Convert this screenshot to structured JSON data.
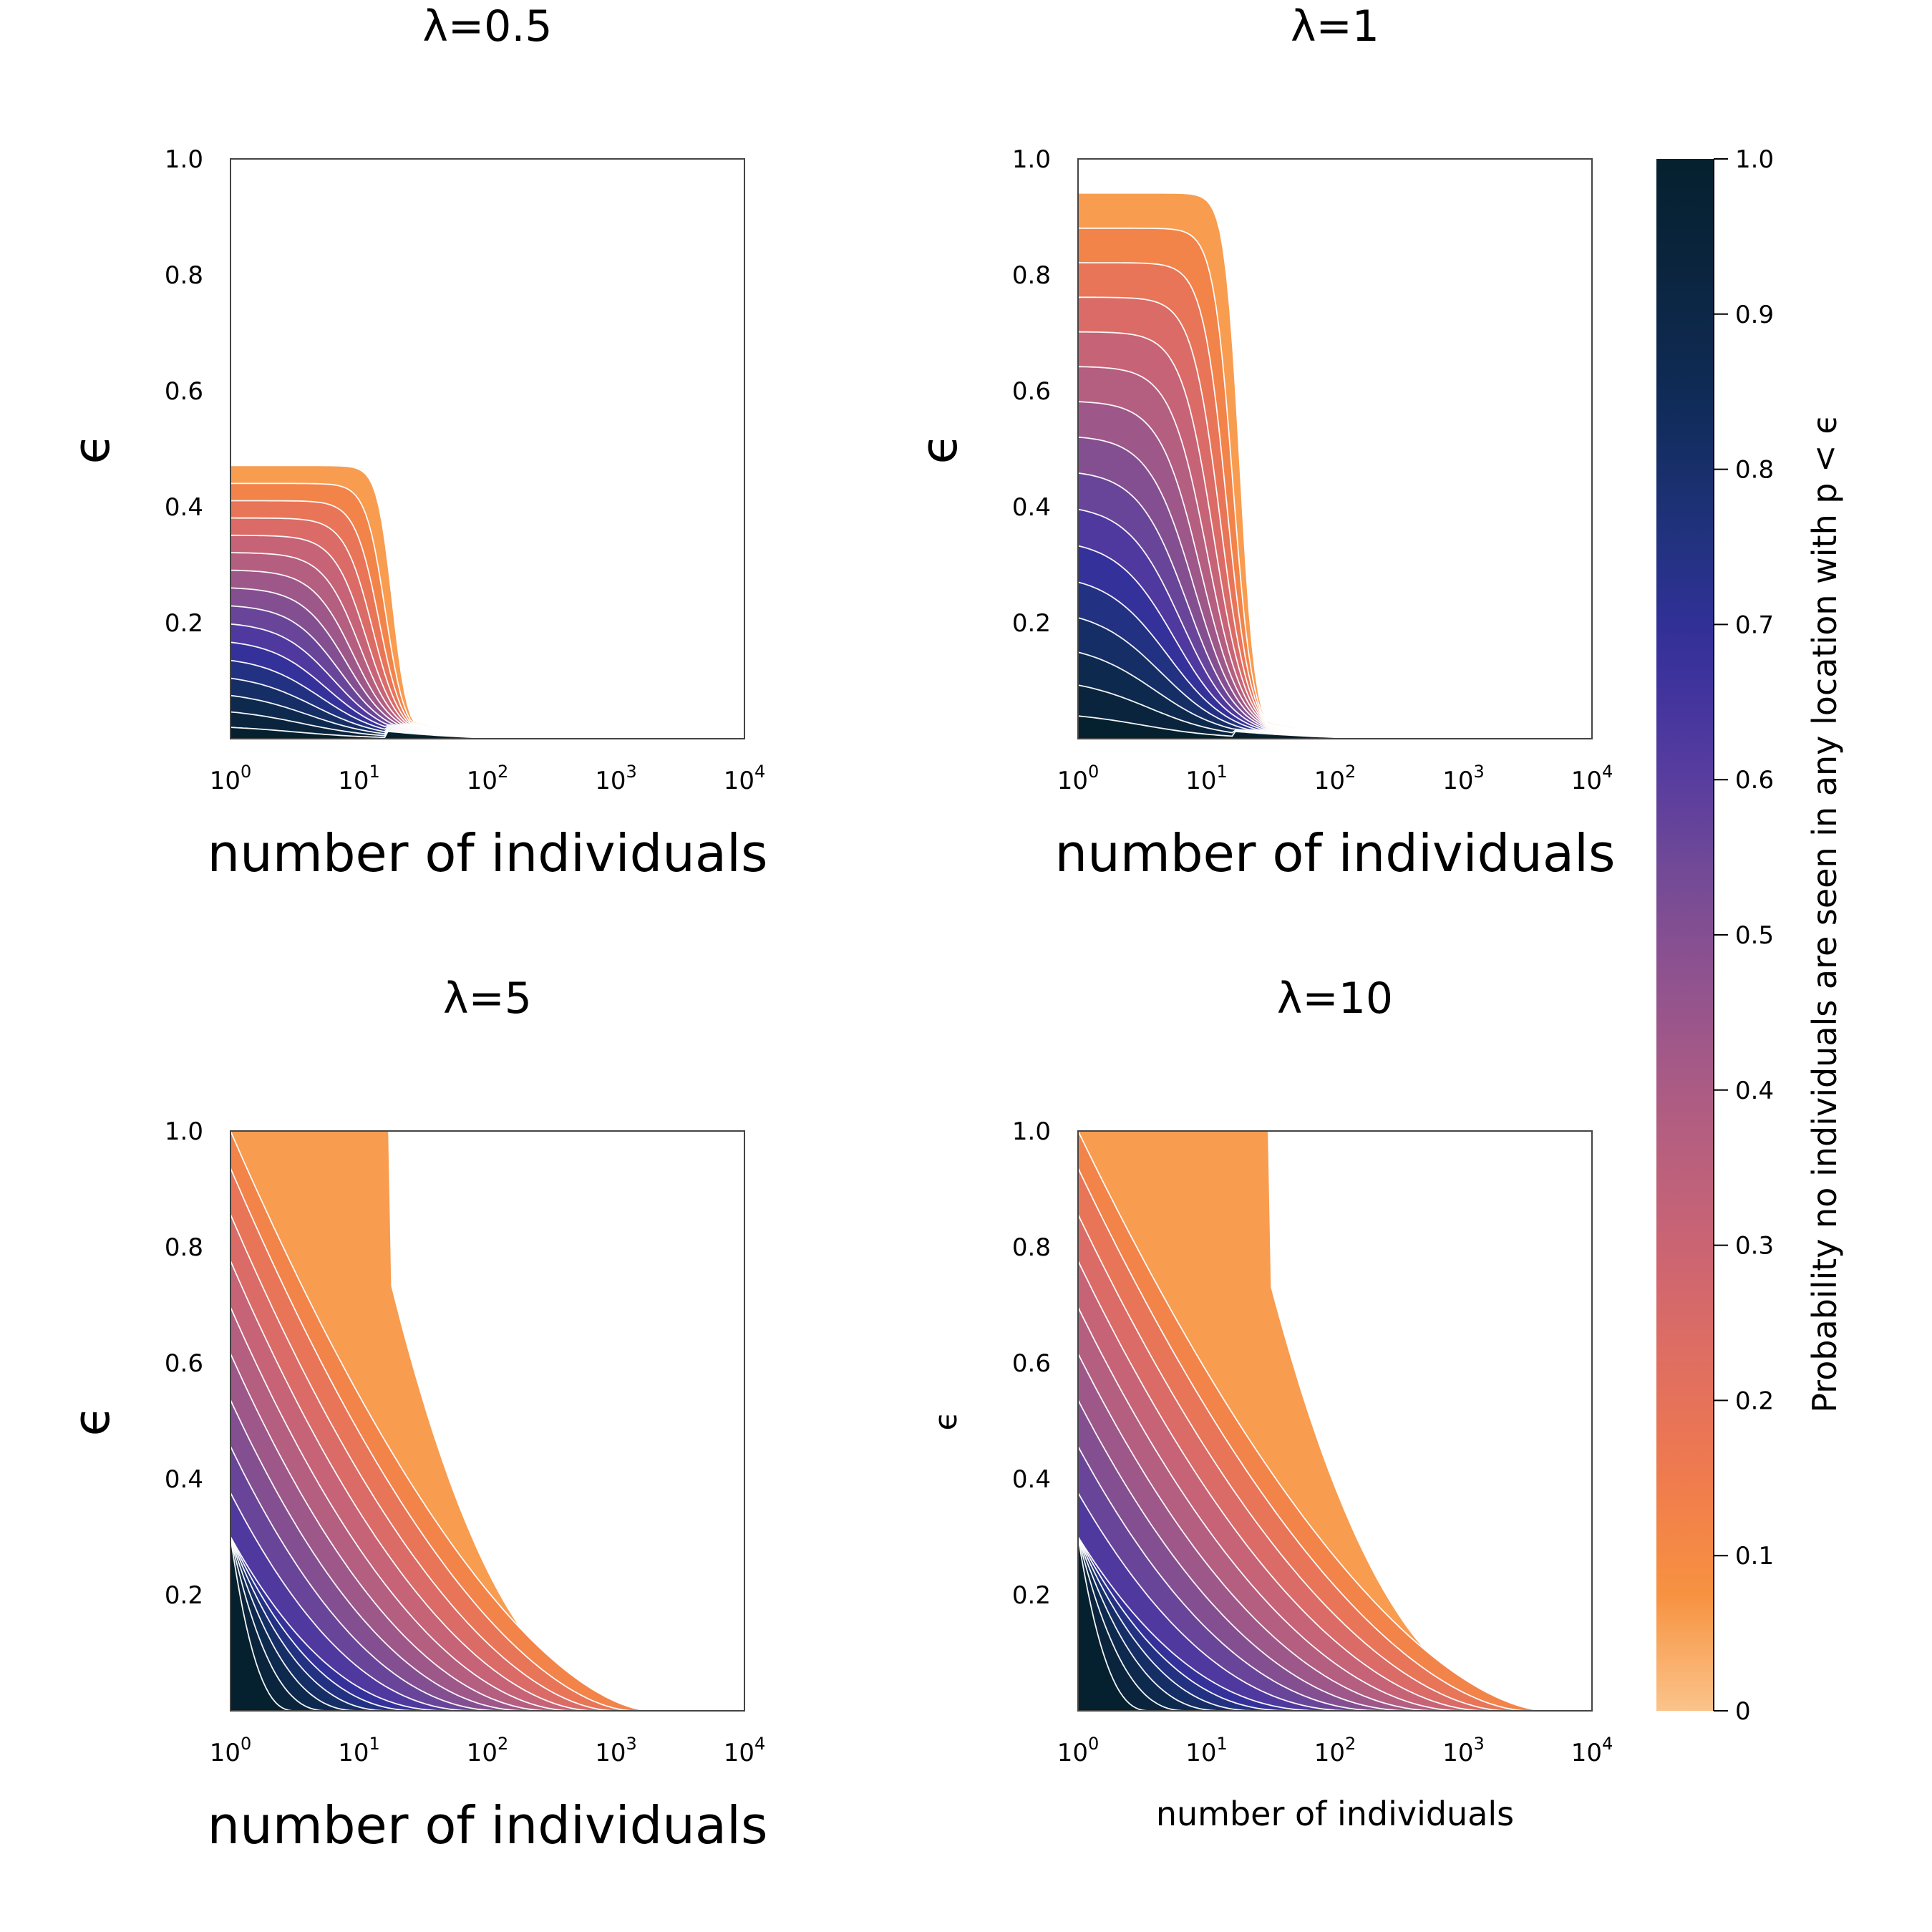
{
  "chart_data": [
    {
      "type": "contour",
      "title": "λ=0.5",
      "lambda": 0.5,
      "xlabel": "number of individuals",
      "ylabel": "ϵ",
      "x_scale": "log",
      "xlim": [
        1,
        10000
      ],
      "ylim": [
        0,
        1
      ],
      "x_ticks": [
        "0",
        "1",
        "2",
        "3",
        "4"
      ],
      "y_ticks": [
        "0.2",
        "0.4",
        "0.6",
        "0.8",
        "1.0"
      ],
      "n_levels": 16,
      "max_epsilon_at_one_individual": 0.47,
      "cliff_individuals": 18,
      "tail_end_individuals": 250
    },
    {
      "type": "contour",
      "title": "λ=1",
      "lambda": 1,
      "xlabel": "number of individuals",
      "ylabel": "ϵ",
      "x_scale": "log",
      "xlim": [
        1,
        10000
      ],
      "ylim": [
        0,
        1
      ],
      "x_ticks": [
        "0",
        "1",
        "2",
        "3",
        "4"
      ],
      "y_ticks": [
        "0.2",
        "0.4",
        "0.6",
        "0.8",
        "1.0"
      ],
      "n_levels": 16,
      "max_epsilon_at_one_individual": 0.94,
      "cliff_individuals": 18,
      "tail_end_individuals": 400
    },
    {
      "type": "contour",
      "title": "λ=5",
      "lambda": 5,
      "xlabel": "number of individuals",
      "ylabel": "ϵ",
      "x_scale": "log",
      "xlim": [
        1,
        10000
      ],
      "ylim": [
        0,
        1
      ],
      "x_ticks": [
        "0",
        "1",
        "2",
        "3",
        "4"
      ],
      "y_ticks": [
        "0.2",
        "0.4",
        "0.6",
        "0.8",
        "1.0"
      ],
      "n_levels": 16,
      "max_epsilon_at_one_individual": 1.0,
      "outer_boundary_individuals_at_top": 17,
      "tail_end_individuals": 2500
    },
    {
      "type": "contour",
      "title": "λ=10",
      "lambda": 10,
      "xlabel": "number of individuals",
      "ylabel": "ϵ",
      "x_scale": "log",
      "xlim": [
        1,
        10000
      ],
      "ylim": [
        0,
        1
      ],
      "x_ticks": [
        "0",
        "1",
        "2",
        "3",
        "4"
      ],
      "y_ticks": [
        "0.2",
        "0.4",
        "0.6",
        "0.8",
        "1.0"
      ],
      "n_levels": 16,
      "max_epsilon_at_one_individual": 1.0,
      "outer_boundary_individuals_at_top": 30,
      "tail_end_individuals": 6000
    }
  ],
  "colorbar": {
    "label": "Probability no individuals are seen in any location with p < ϵ",
    "range": [
      0,
      1
    ],
    "ticks": [
      "0",
      "0.1",
      "0.2",
      "0.3",
      "0.4",
      "0.5",
      "0.6",
      "0.7",
      "0.8",
      "0.9",
      "1.0"
    ],
    "colors": [
      "#fbc38a",
      "#f7913f",
      "#ef7a4f",
      "#df6d62",
      "#c86375",
      "#b15d82",
      "#94548d",
      "#734a96",
      "#523aa0",
      "#33309a",
      "#1e3279",
      "#0f2b57",
      "#0b2540",
      "#05202e"
    ]
  },
  "tick_base": "10"
}
